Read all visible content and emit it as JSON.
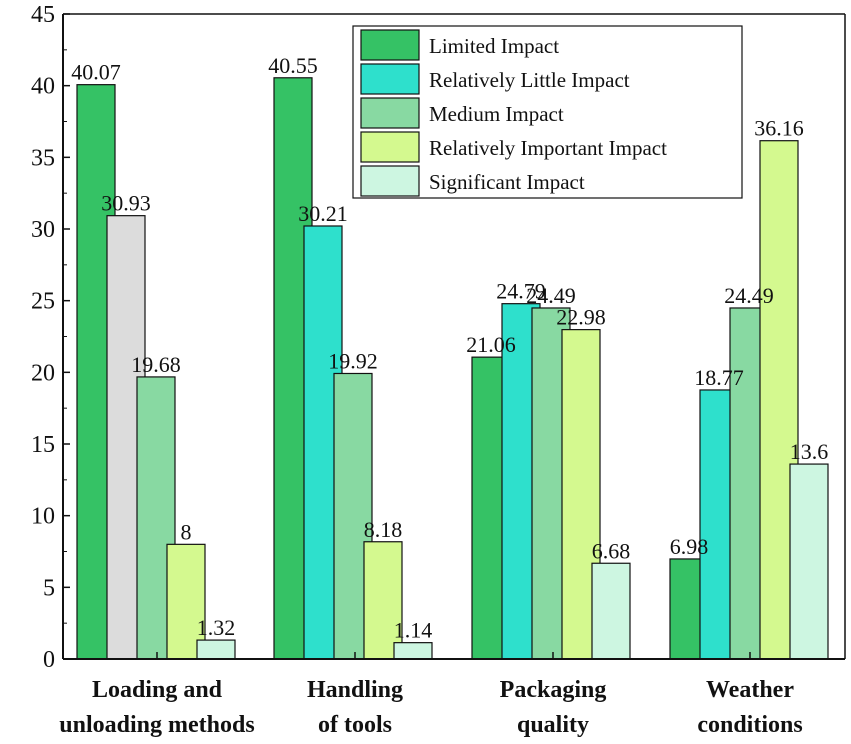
{
  "chart_data": {
    "type": "bar",
    "title": "",
    "xlabel": "",
    "ylabel": "",
    "ylim": [
      0,
      45
    ],
    "yticks": [
      0,
      5,
      10,
      15,
      20,
      25,
      30,
      35,
      40,
      45
    ],
    "categories": [
      [
        "Loading and",
        "unloading methods"
      ],
      [
        "Handling",
        "of tools"
      ],
      [
        "Packaging",
        "quality"
      ],
      [
        "Weather",
        "conditions"
      ]
    ],
    "series": [
      {
        "name": "Limited Impact",
        "color": "#35c265",
        "values": [
          40.07,
          40.55,
          21.06,
          6.98
        ],
        "labels": [
          "40.07",
          "40.55",
          "21.06",
          "6.98"
        ]
      },
      {
        "name": "Relatively Little Impact",
        "color": "#2ee0cc",
        "values": [
          30.93,
          30.21,
          24.79,
          18.77
        ],
        "labels": [
          "30.93",
          "30.21",
          "24.79",
          "18.77"
        ]
      },
      {
        "name": "Medium Impact",
        "color": "#88d9a2",
        "values": [
          19.68,
          19.92,
          24.49,
          24.49
        ],
        "labels": [
          "19.68",
          "19.92",
          "24.49",
          "24.49"
        ]
      },
      {
        "name": "Relatively Important Impact",
        "color": "#d4f98f",
        "values": [
          8,
          8.18,
          22.98,
          36.16
        ],
        "labels": [
          "8",
          "8.18",
          "22.98",
          "36.16"
        ]
      },
      {
        "name": "Significant Impact",
        "color": "#cdf6e1",
        "values": [
          1.32,
          1.14,
          6.68,
          13.6
        ],
        "labels": [
          "1.32",
          "1.14",
          "6.68",
          "13.6"
        ]
      }
    ],
    "bar_color_overrides": [
      {
        "series": 1,
        "category": 0,
        "color": "#dcdcdc"
      }
    ],
    "legend_position": "top-right",
    "grid": false
  }
}
